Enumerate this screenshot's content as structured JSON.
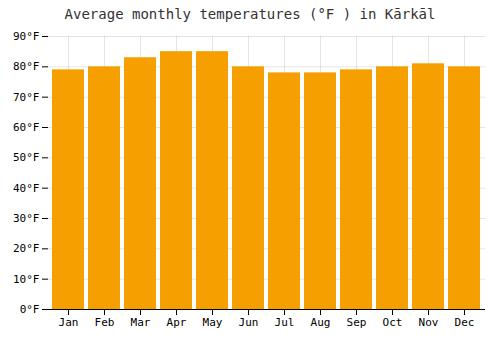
{
  "chart_data": {
    "type": "bar",
    "title": "Average monthly temperatures (°F ) in Kārkāl",
    "categories": [
      "Jan",
      "Feb",
      "Mar",
      "Apr",
      "May",
      "Jun",
      "Jul",
      "Aug",
      "Sep",
      "Oct",
      "Nov",
      "Dec"
    ],
    "values": [
      79,
      80,
      83,
      85,
      85,
      80,
      78,
      78,
      79,
      80,
      81,
      80
    ],
    "color": "#F5A000",
    "ylim": [
      0,
      90
    ],
    "yticks": [
      {
        "value": 0,
        "label": "0°F"
      },
      {
        "value": 10,
        "label": "10°F"
      },
      {
        "value": 20,
        "label": "20°F"
      },
      {
        "value": 30,
        "label": "30°F"
      },
      {
        "value": 40,
        "label": "40°F"
      },
      {
        "value": 50,
        "label": "50°F"
      },
      {
        "value": 60,
        "label": "60°F"
      },
      {
        "value": 70,
        "label": "70°F"
      },
      {
        "value": 80,
        "label": "80°F"
      },
      {
        "value": 90,
        "label": "90°F"
      }
    ],
    "grid": true
  }
}
